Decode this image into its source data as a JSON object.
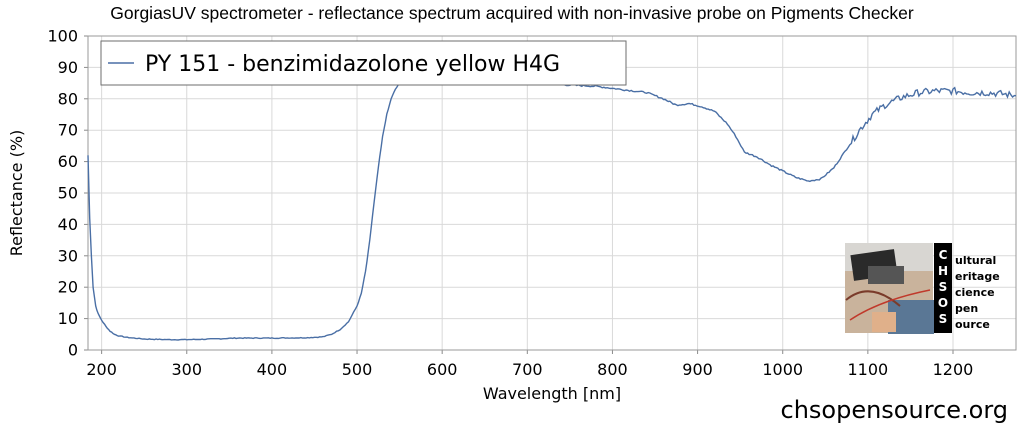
{
  "chart_data": {
    "type": "line",
    "title": "GorgiasUV spectrometer - reflectance spectrum acquired with non-invasive probe on Pigments Checker",
    "xlabel": "Wavelength [nm]",
    "ylabel": "Reflectance (%)",
    "xlim": [
      184,
      1274
    ],
    "ylim": [
      0,
      100
    ],
    "x_ticks": [
      200,
      300,
      400,
      500,
      600,
      700,
      800,
      900,
      1000,
      1100,
      1200
    ],
    "y_ticks": [
      0,
      10,
      20,
      30,
      40,
      50,
      60,
      70,
      80,
      90,
      100
    ],
    "grid": true,
    "legend_position": "top-left",
    "series": [
      {
        "name": "PY 151 - benzimidazolone yellow H4G",
        "color": "#4a6fa5",
        "points": [
          [
            184,
            62
          ],
          [
            186,
            42
          ],
          [
            188,
            30
          ],
          [
            190,
            20
          ],
          [
            193,
            14
          ],
          [
            196,
            11.5
          ],
          [
            200,
            9.5
          ],
          [
            205,
            7.5
          ],
          [
            210,
            6
          ],
          [
            215,
            5
          ],
          [
            220,
            4.5
          ],
          [
            230,
            4
          ],
          [
            250,
            3.5
          ],
          [
            280,
            3.3
          ],
          [
            300,
            3.3
          ],
          [
            330,
            3.5
          ],
          [
            360,
            3.8
          ],
          [
            400,
            3.8
          ],
          [
            440,
            3.9
          ],
          [
            460,
            4.2
          ],
          [
            470,
            5
          ],
          [
            480,
            6.5
          ],
          [
            490,
            9
          ],
          [
            500,
            14
          ],
          [
            505,
            18
          ],
          [
            510,
            25
          ],
          [
            515,
            35
          ],
          [
            520,
            47
          ],
          [
            525,
            58
          ],
          [
            530,
            68
          ],
          [
            535,
            75
          ],
          [
            540,
            80
          ],
          [
            545,
            83
          ],
          [
            550,
            85
          ],
          [
            560,
            86
          ],
          [
            575,
            86.5
          ],
          [
            600,
            86.5
          ],
          [
            630,
            86
          ],
          [
            660,
            86
          ],
          [
            700,
            85.5
          ],
          [
            740,
            84.5
          ],
          [
            780,
            84
          ],
          [
            810,
            83
          ],
          [
            840,
            82
          ],
          [
            860,
            80
          ],
          [
            875,
            78
          ],
          [
            890,
            78.5
          ],
          [
            905,
            77.5
          ],
          [
            920,
            76
          ],
          [
            935,
            72
          ],
          [
            945,
            68
          ],
          [
            955,
            63
          ],
          [
            970,
            61.5
          ],
          [
            985,
            59
          ],
          [
            1000,
            57
          ],
          [
            1015,
            55
          ],
          [
            1030,
            53.8
          ],
          [
            1045,
            54.5
          ],
          [
            1060,
            58
          ],
          [
            1075,
            64
          ],
          [
            1090,
            70
          ],
          [
            1105,
            75
          ],
          [
            1120,
            78
          ],
          [
            1140,
            80.5
          ],
          [
            1160,
            82
          ],
          [
            1180,
            82.5
          ],
          [
            1200,
            82.5
          ],
          [
            1220,
            82
          ],
          [
            1240,
            82
          ],
          [
            1260,
            81.5
          ],
          [
            1274,
            81
          ]
        ]
      }
    ]
  },
  "logo": {
    "letters": [
      "C",
      "H",
      "S",
      "O",
      "S"
    ],
    "words": [
      "ultural",
      "eritage",
      "cience",
      "pen",
      "ource"
    ]
  },
  "website": "chsopensource.org"
}
